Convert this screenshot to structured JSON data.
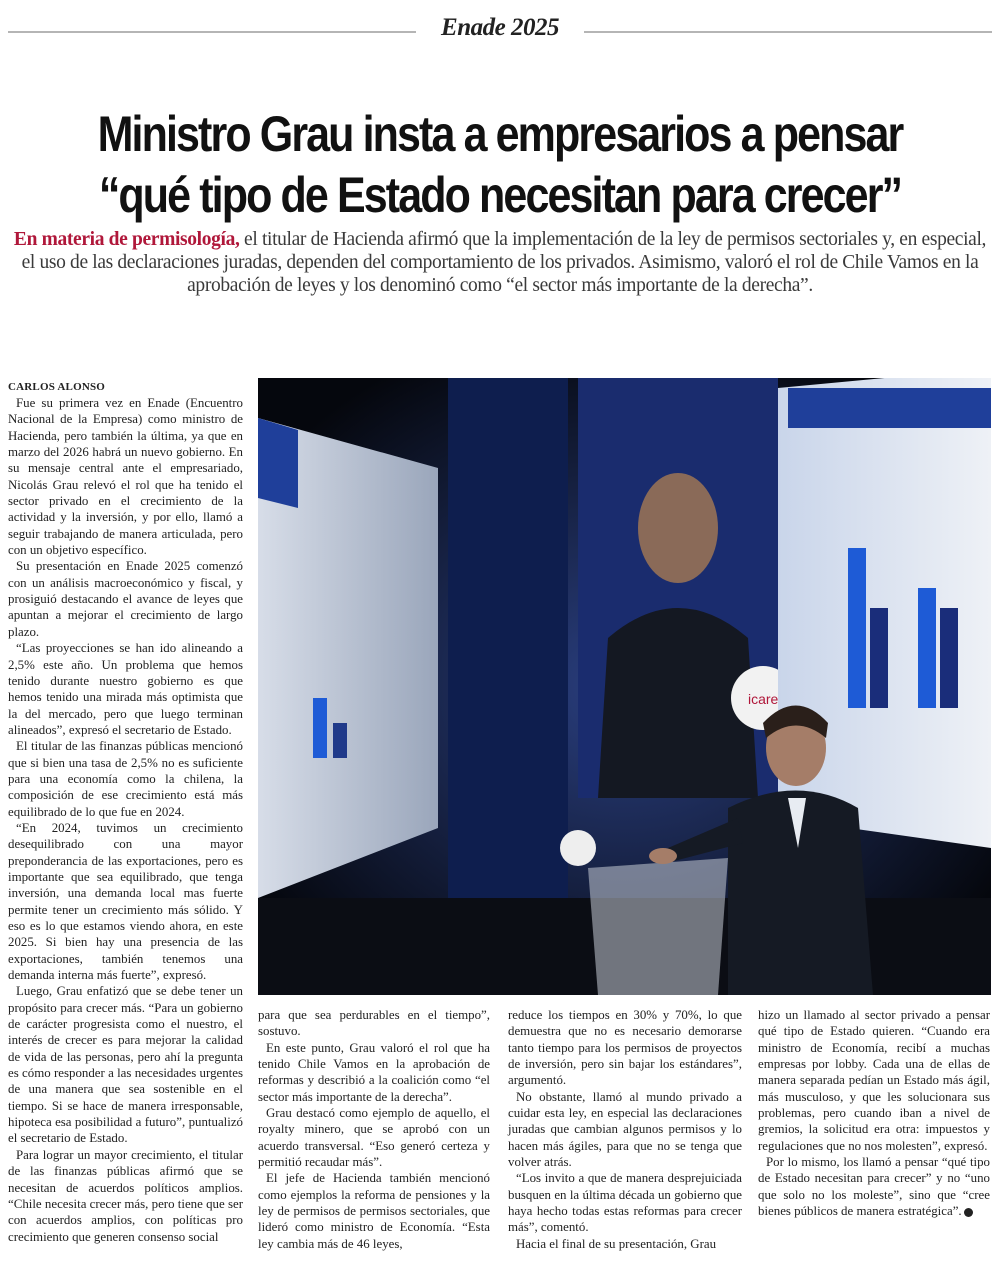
{
  "section": {
    "label": "Enade 2025"
  },
  "headline": {
    "line1": "Ministro Grau insta a empresarios a pensar",
    "line2": "“qué tipo de Estado necesitan para crecer”"
  },
  "lead": {
    "kicker": "En materia de permisología,",
    "text": " el titular de Hacienda afirmó que la implementación de la ley de permisos sectoriales y, en especial, el uso de las declaraciones juradas, dependen del comportamiento de los privados. Asimismo, valoró el rol de Chile Vamos en la aprobación de leyes y los denominó como “el sector más importante de la derecha”."
  },
  "byline": "CARLOS ALONSO",
  "photo": {
    "alt": "Ministro Nicolás Grau en el podio de Enade 2025 frente a pantallas con gráficos",
    "accent": "#1e5bd6"
  },
  "columns": {
    "col1": [
      "Fue su primera vez en Enade (Encuentro Nacional de la Empresa) como ministro de Hacienda, pero también la última, ya que en marzo del 2026 habrá un nuevo gobierno. En su mensaje central ante el empresariado, Nicolás Grau relevó el rol que ha tenido el sector privado en el crecimiento de la actividad y la inversión, y por ello, llamó a seguir trabajando de manera articulada, pero con un objetivo específico.",
      "Su presentación en Enade 2025 comenzó con un análisis macroeconómico y fiscal, y prosiguió destacando el avance de leyes que apuntan a mejorar el crecimiento de largo plazo.",
      "“Las proyecciones se han ido alineando a 2,5% este año. Un problema que hemos tenido durante nuestro gobierno es que hemos tenido una mirada más optimista que la del mercado, pero que luego terminan alineados”, expresó el secretario de Estado.",
      "El titular de las finanzas públicas mencionó que si bien una tasa de 2,5% no es suficiente para una economía como la chilena, la composición de ese crecimiento está más equilibrado de lo que fue en 2024.",
      "“En 2024, tuvimos un crecimiento desequilibrado con una mayor preponderancia de las exportaciones, pero es importante que sea equilibrado, que tenga inversión, una demanda local mas fuerte permite tener un crecimiento más sólido. Y eso es lo que estamos viendo ahora, en este 2025. Si bien hay una presencia de las exportaciones, también tenemos una demanda interna más fuerte”, expresó.",
      "Luego, Grau enfatizó que se debe tener un propósito para crecer más. “Para un gobierno de carácter progresista como el nuestro, el interés de crecer es para mejorar la calidad de vida de las personas, pero ahí la pregunta es cómo responder a las necesidades urgentes de una manera que sea sostenible en el tiempo. Si se hace de manera irresponsable, hipoteca esa posibilidad a futuro”, puntualizó el secretario de Estado.",
      "Para lograr un mayor crecimiento, el titular de las finanzas públicas afirmó que se necesitan de acuerdos políticos amplios. “Chile necesita crecer más, pero tiene que ser con acuerdos amplios, con políticas pro crecimiento que generen consenso social"
    ],
    "col2": [
      "para que sea perdurables en el tiempo”, sostuvo.",
      "En este punto, Grau valoró el rol que ha tenido Chile Vamos en la aprobación de reformas y describió a la coalición como “el sector más importante de la derecha”.",
      "Grau destacó como ejemplo de aquello, el royalty minero, que se aprobó con un acuerdo transversal. “Eso generó certeza y permitió recaudar más”.",
      "El jefe de Hacienda también mencionó como ejemplos la reforma de pensiones y la ley de permisos de permisos sectoriales, que lideró como ministro de Economía. “Esta ley cambia más de 46 leyes,"
    ],
    "col3": [
      "reduce los tiempos en 30% y 70%, lo que demuestra que no es necesario demorarse tanto tiempo para los permisos de proyectos de inversión, pero sin bajar los estándares”, argumentó.",
      "No obstante, llamó al mundo privado a cuidar esta ley, en especial las declaraciones juradas que cambian algunos permisos y lo hacen más ágiles, para que no se tenga que volver atrás.",
      "“Los invito a que de manera desprejuiciada busquen en la última década un gobierno que haya hecho todas estas reformas para crecer más”, comentó.",
      "Hacia el final de su presentación, Grau"
    ],
    "col4": [
      "hizo un llamado al sector privado a pensar qué tipo de Estado quieren. “Cuando era ministro de Economía, recibí a muchas empresas por lobby. Cada una de ellas de manera separada pedían un Estado más ágil, más musculoso, y que les solucionara sus problemas, pero cuando iban a nivel de gremios, la solicitud era otra: impuestos y regulaciones que no nos molesten”, expresó.",
      "Por lo mismo, los llamó a pensar “qué tipo de Estado necesitan para crecer” y no “uno que solo no los moleste”, sino que “cree bienes públicos de manera estratégica”."
    ]
  }
}
